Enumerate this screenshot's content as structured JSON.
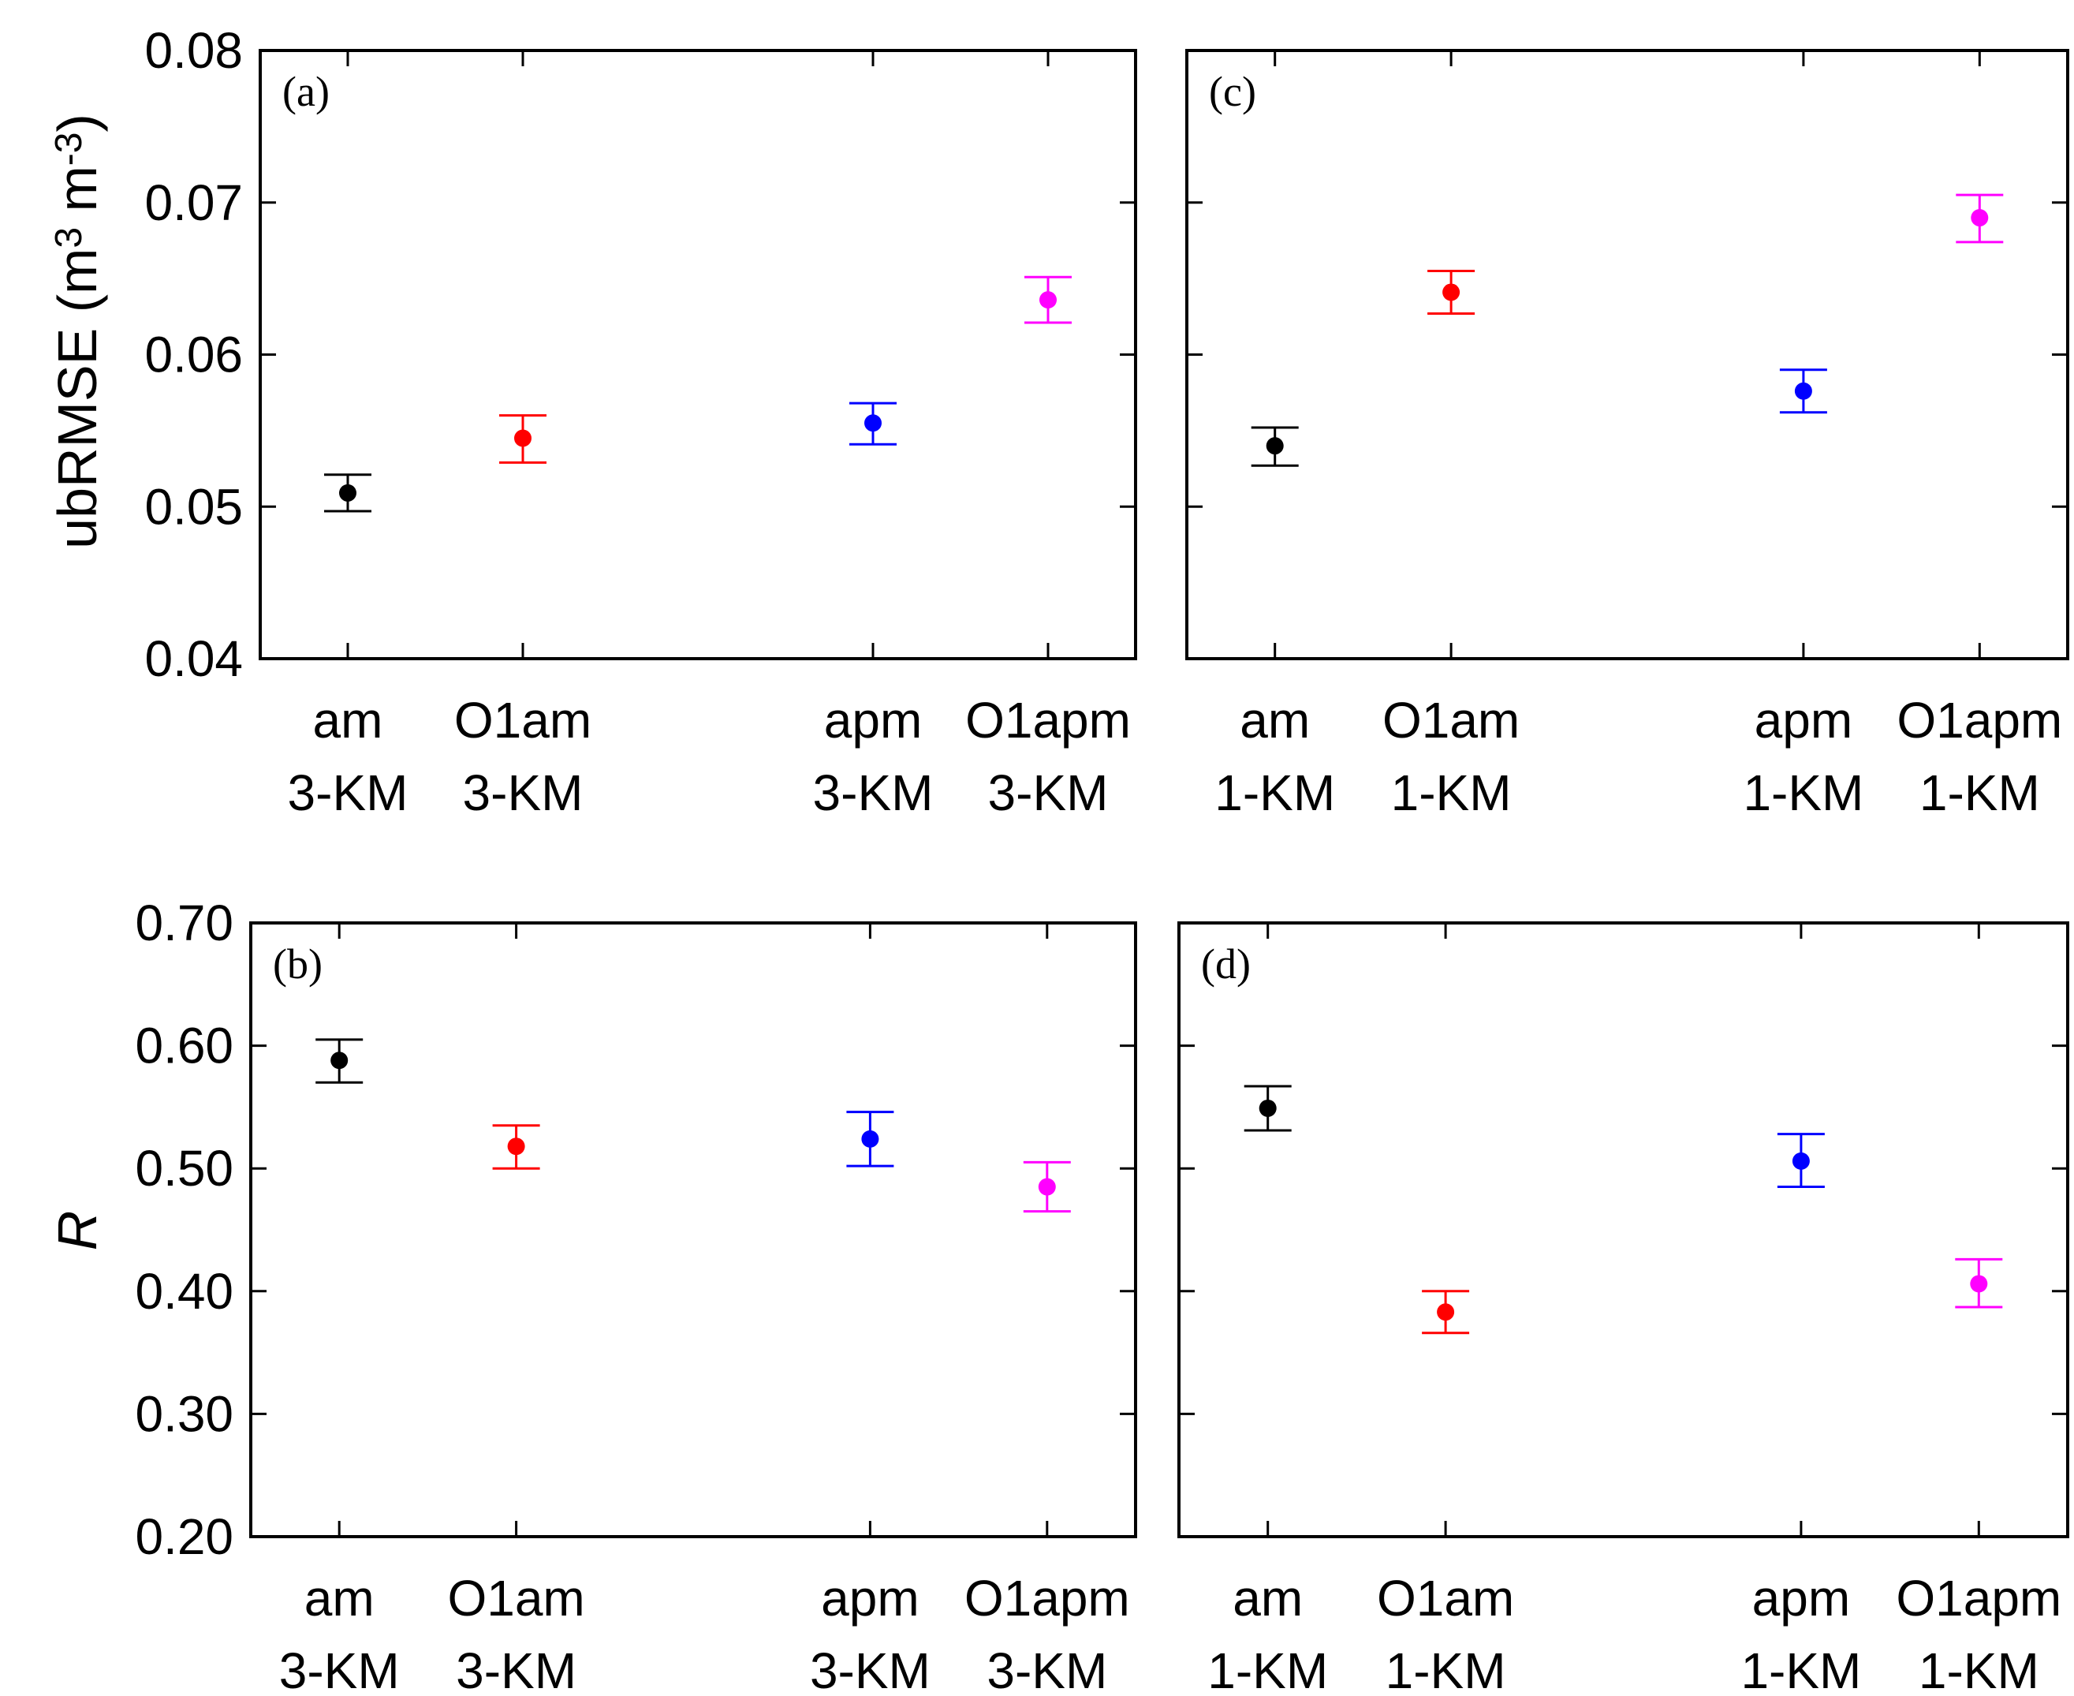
{
  "chart_data": [
    {
      "type": "scatter",
      "panel_label": "(a)",
      "categories": [
        "am 3-KM",
        "O1am 3-KM",
        "apm 3-KM",
        "O1apm 3-KM"
      ],
      "category_lines": [
        [
          "am",
          "3-KM"
        ],
        [
          "O1am",
          "3-KM"
        ],
        [
          "apm",
          "3-KM"
        ],
        [
          "O1apm",
          "3-KM"
        ]
      ],
      "x_slots": [
        0.5,
        1.5,
        3.5,
        4.5
      ],
      "xlim": [
        0,
        5
      ],
      "values": [
        0.0509,
        0.0545,
        0.0555,
        0.0636
      ],
      "err_low": [
        0.0497,
        0.0529,
        0.0541,
        0.0621
      ],
      "err_high": [
        0.0521,
        0.056,
        0.0568,
        0.0651
      ],
      "colors": [
        "#000000",
        "#ff0000",
        "#0000ff",
        "#ff00ff"
      ],
      "ylim": [
        0.04,
        0.08
      ],
      "yticks": [
        0.04,
        0.05,
        0.06,
        0.07,
        0.08
      ],
      "ytick_labels": [
        "0.04",
        "0.05",
        "0.06",
        "0.07",
        "0.08"
      ],
      "ylabel": "ubRMSE (m³ m⁻³)",
      "ylabel_parts": [
        "ubRMSE (m",
        "3",
        " m",
        "-3",
        ")"
      ]
    },
    {
      "type": "scatter",
      "panel_label": "(c)",
      "categories": [
        "am 1-KM",
        "O1am 1-KM",
        "apm 1-KM",
        "O1apm 1-KM"
      ],
      "category_lines": [
        [
          "am",
          "1-KM"
        ],
        [
          "O1am",
          "1-KM"
        ],
        [
          "apm",
          "1-KM"
        ],
        [
          "O1apm",
          "1-KM"
        ]
      ],
      "x_slots": [
        0.5,
        1.5,
        3.5,
        4.5
      ],
      "xlim": [
        0,
        5
      ],
      "values": [
        0.054,
        0.0641,
        0.0576,
        0.069
      ],
      "err_low": [
        0.0527,
        0.0627,
        0.0562,
        0.0674
      ],
      "err_high": [
        0.0552,
        0.0655,
        0.059,
        0.0705
      ],
      "colors": [
        "#000000",
        "#ff0000",
        "#0000ff",
        "#ff00ff"
      ],
      "ylim": [
        0.04,
        0.08
      ],
      "yticks": [
        0.04,
        0.05,
        0.06,
        0.07,
        0.08
      ]
    },
    {
      "type": "scatter",
      "panel_label": "(b)",
      "categories": [
        "am 3-KM",
        "O1am 3-KM",
        "apm 3-KM",
        "O1apm 3-KM"
      ],
      "category_lines": [
        [
          "am",
          "3-KM"
        ],
        [
          "O1am",
          "3-KM"
        ],
        [
          "apm",
          "3-KM"
        ],
        [
          "O1apm",
          "3-KM"
        ]
      ],
      "x_slots": [
        0.5,
        1.5,
        3.5,
        4.5
      ],
      "xlim": [
        0,
        5
      ],
      "values": [
        0.588,
        0.518,
        0.524,
        0.485
      ],
      "err_low": [
        0.57,
        0.5,
        0.502,
        0.465
      ],
      "err_high": [
        0.605,
        0.535,
        0.546,
        0.505
      ],
      "colors": [
        "#000000",
        "#ff0000",
        "#0000ff",
        "#ff00ff"
      ],
      "ylim": [
        0.2,
        0.7
      ],
      "yticks": [
        0.2,
        0.3,
        0.4,
        0.5,
        0.6,
        0.7
      ],
      "ytick_labels": [
        "0.20",
        "0.30",
        "0.40",
        "0.50",
        "0.60",
        "0.70"
      ],
      "ylabel": "R",
      "ylabel_parts": [
        "R"
      ]
    },
    {
      "type": "scatter",
      "panel_label": "(d)",
      "categories": [
        "am 1-KM",
        "O1am 1-KM",
        "apm 1-KM",
        "O1apm 1-KM"
      ],
      "category_lines": [
        [
          "am",
          "1-KM"
        ],
        [
          "O1am",
          "1-KM"
        ],
        [
          "apm",
          "1-KM"
        ],
        [
          "O1apm",
          "1-KM"
        ]
      ],
      "x_slots": [
        0.5,
        1.5,
        3.5,
        4.5
      ],
      "xlim": [
        0,
        5
      ],
      "values": [
        0.549,
        0.383,
        0.506,
        0.406
      ],
      "err_low": [
        0.531,
        0.366,
        0.485,
        0.387
      ],
      "err_high": [
        0.567,
        0.4,
        0.528,
        0.426
      ],
      "colors": [
        "#000000",
        "#ff0000",
        "#0000ff",
        "#ff00ff"
      ],
      "ylim": [
        0.2,
        0.7
      ],
      "yticks": [
        0.2,
        0.3,
        0.4,
        0.5,
        0.6,
        0.7
      ]
    }
  ]
}
